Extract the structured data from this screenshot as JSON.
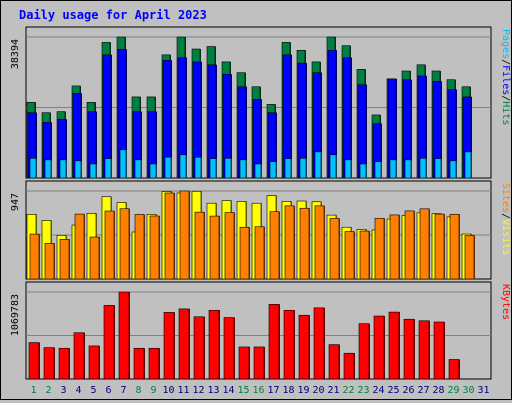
{
  "chart_data": {
    "title": "Daily usage for April 2023",
    "type": "bar",
    "x": [
      "1",
      "2",
      "3",
      "4",
      "5",
      "6",
      "7",
      "8",
      "9",
      "10",
      "11",
      "12",
      "13",
      "14",
      "15",
      "16",
      "17",
      "18",
      "19",
      "20",
      "21",
      "22",
      "23",
      "24",
      "25",
      "26",
      "27",
      "28",
      "29",
      "30",
      "31"
    ],
    "weekend_days": [
      1,
      2,
      8,
      9,
      15,
      16,
      22,
      23,
      29,
      30
    ],
    "panels": [
      {
        "id": "top",
        "ymax_label": "38394",
        "ylabel": [
          "Pages",
          "/",
          "Files",
          "/",
          "Hits"
        ],
        "ylabel_colors": [
          "#00c0ff",
          "#000000",
          "#0000ff",
          "#000000",
          "#008040"
        ],
        "series": [
          {
            "name": "Hits",
            "color": "#008040",
            "values": [
              18250,
              15750,
              16000,
              22200,
              18250,
              32700,
              34000,
              19550,
              19550,
              29700,
              34000,
              31100,
              31700,
              28000,
              25400,
              22000,
              17750,
              32700,
              30800,
              28000,
              34000,
              31900,
              26200,
              15200,
              23900,
              25800,
              27300,
              25800,
              23700,
              22000,
              null
            ]
          },
          {
            "name": "Files",
            "color": "#0000ff",
            "values": [
              15750,
              13400,
              14150,
              20400,
              16000,
              29700,
              31000,
              16000,
              16000,
              28400,
              29000,
              28000,
              27300,
              25000,
              22000,
              18950,
              15750,
              29700,
              27700,
              25400,
              30800,
              29000,
              22500,
              13100,
              23900,
              23700,
              24600,
              23300,
              21300,
              19550,
              null
            ]
          },
          {
            "name": "Pages",
            "color": "#00c0ff",
            "values": [
              4740,
              4380,
              4380,
              4140,
              3380,
              4680,
              6800,
              4380,
              3380,
              5000,
              5600,
              5000,
              4680,
              4740,
              4380,
              3380,
              3930,
              4680,
              4740,
              6300,
              5600,
              4380,
              3380,
              3930,
              4380,
              4380,
              4740,
              4680,
              4140,
              6300,
              null
            ]
          }
        ]
      },
      {
        "id": "middle",
        "ymax_label": "947",
        "ylabel": [
          "Sites",
          "/",
          "Visits"
        ],
        "ylabel_colors": [
          "#ff8000",
          "#000000",
          "#ffff00"
        ],
        "series": [
          {
            "name": "Visits",
            "color": "#ffff00",
            "values": [
              678,
              614,
              458,
              566,
              689,
              863,
              803,
              493,
              678,
              918,
              902,
              920,
              795,
              823,
              814,
              795,
              875,
              815,
              818,
              810,
              670,
              543,
              520,
              514,
              629,
              665,
              694,
              685,
              652,
              472,
              null
            ]
          },
          {
            "name": "Sites",
            "color": "#ff8000",
            "values": [
              471,
              373,
              416,
              681,
              440,
              713,
              737,
              677,
              661,
              902,
              923,
              701,
              660,
              697,
              543,
              548,
              706,
              767,
              742,
              767,
              635,
              497,
              503,
              637,
              672,
              714,
              736,
              681,
              679,
              456,
              null
            ]
          }
        ]
      },
      {
        "id": "bottom",
        "ymax_label": "1069783",
        "ylabel": [
          "KBytes"
        ],
        "ylabel_colors": [
          "#ff0000"
        ],
        "series": [
          {
            "name": "KBytes",
            "color": "#ff0000",
            "values": [
              448000,
              386000,
              378000,
              569000,
              407000,
              905000,
              1069783,
              378000,
              378000,
              819000,
              862000,
              765000,
              845000,
              756000,
              394000,
              394000,
              918000,
              845000,
              784000,
              875000,
              423000,
              317000,
              680000,
              774000,
              823000,
              735000,
              716000,
              701000,
              240000,
              null,
              null
            ]
          }
        ]
      }
    ],
    "colors": {
      "background": "#c0c0c0",
      "plot_bg": "#c0c0c0",
      "title": "#0000ff",
      "weekday_label": "#000080",
      "weekend_label": "#008040"
    }
  }
}
